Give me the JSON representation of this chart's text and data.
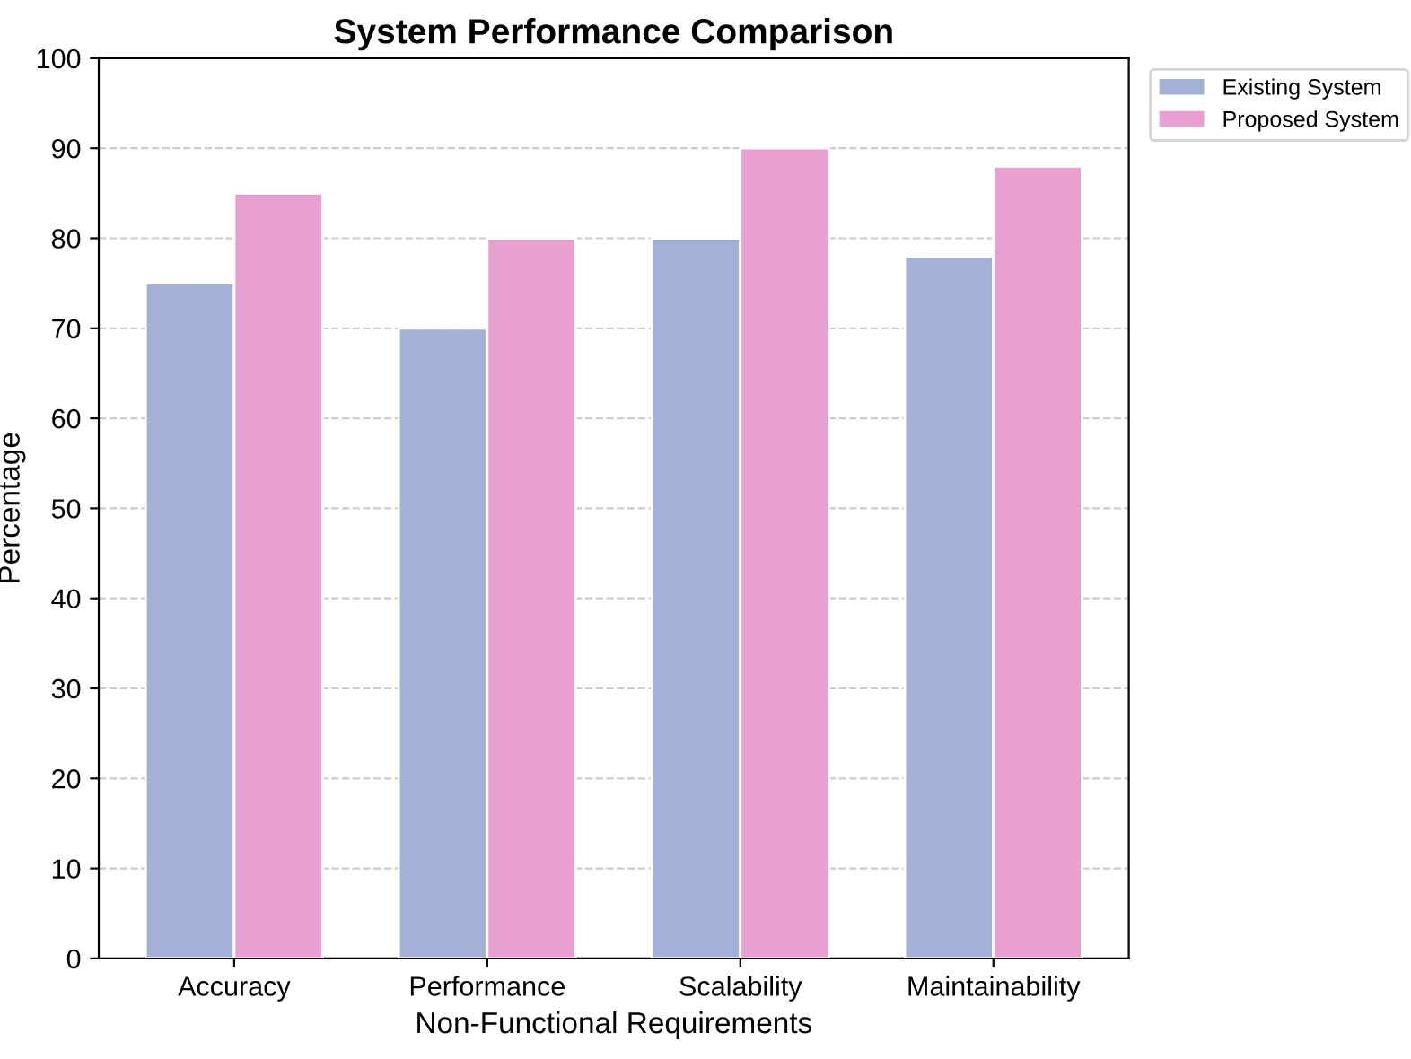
{
  "chart_data": {
    "type": "bar",
    "title": "System Performance Comparison",
    "xlabel": "Non-Functional Requirements",
    "ylabel": "Percentage",
    "categories": [
      "Accuracy",
      "Performance",
      "Scalability",
      "Maintainability"
    ],
    "series": [
      {
        "name": "Existing System",
        "color": "#a2b1d5",
        "values": [
          75,
          70,
          80,
          78
        ]
      },
      {
        "name": "Proposed System",
        "color": "#e8a0d0",
        "values": [
          85,
          80,
          90,
          88
        ]
      }
    ],
    "ylim": [
      0,
      100
    ],
    "yticks": [
      0,
      10,
      20,
      30,
      40,
      50,
      60,
      70,
      80,
      90,
      100
    ],
    "grid": "y",
    "legend": "top right"
  }
}
